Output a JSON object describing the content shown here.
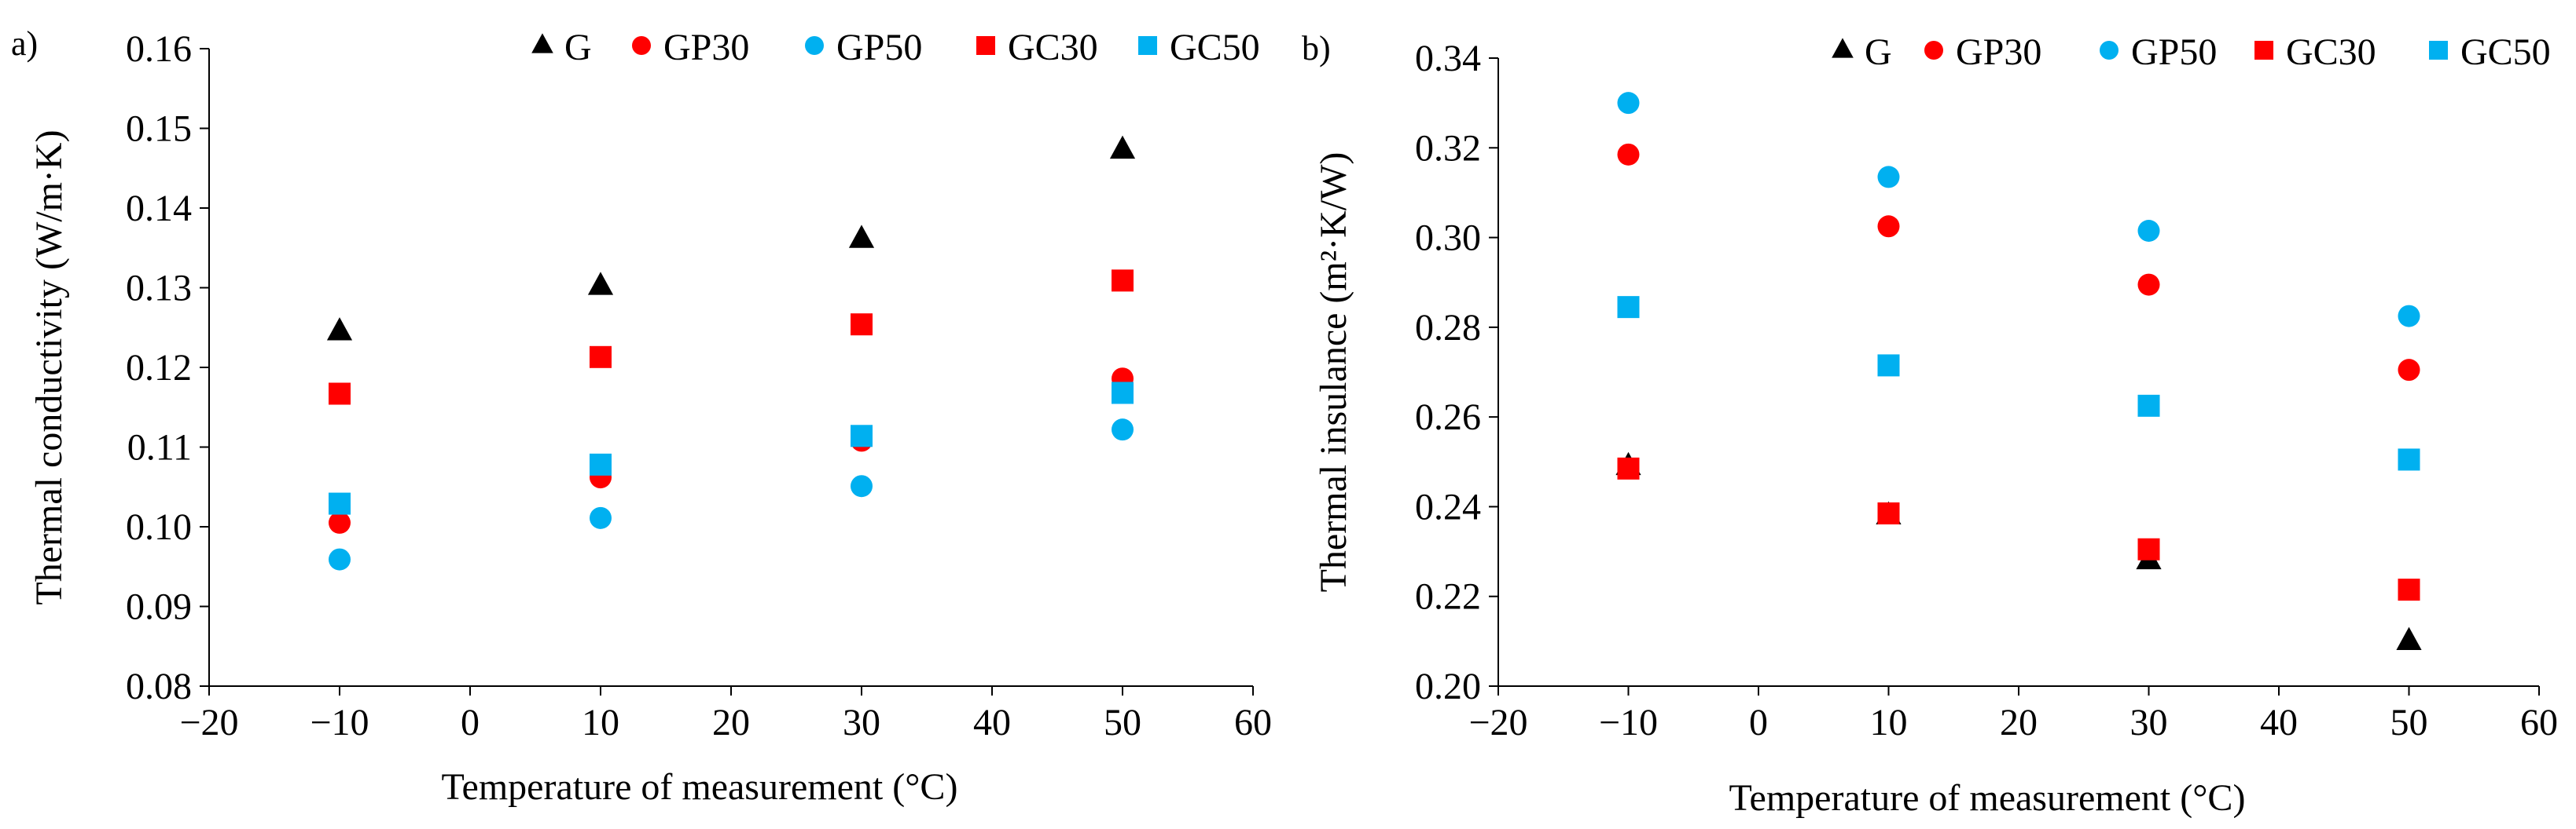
{
  "chart_data": [
    {
      "panel_label": "a)",
      "type": "scatter",
      "xlabel": "Temperature  of measurement  (°C)",
      "ylabel": "Thermal  conductivity  (W/m·K)",
      "xlim": [
        -20,
        60
      ],
      "ylim": [
        0.08,
        0.16
      ],
      "xticks": [
        -20,
        -10,
        0,
        10,
        20,
        30,
        40,
        50,
        60
      ],
      "xtick_labels": [
        "−20",
        "−10",
        "0",
        "10",
        "20",
        "30",
        "40",
        "50",
        "60"
      ],
      "yticks": [
        0.08,
        0.09,
        0.1,
        0.11,
        0.12,
        0.13,
        0.14,
        0.15,
        0.16
      ],
      "ytick_labels": [
        "0.08",
        "0.09",
        "0.10",
        "0.11",
        "0.12",
        "0.13",
        "0.14",
        "0.15",
        "0.16"
      ],
      "grid": false,
      "legend_position": "top",
      "x": [
        -10,
        10,
        30,
        50
      ],
      "series": [
        {
          "name": "G",
          "marker": "triangle",
          "color": "#000000",
          "values": [
            0.1245,
            0.1302,
            0.1361,
            0.1473
          ]
        },
        {
          "name": "GP30",
          "marker": "circle",
          "color": "#ff0000",
          "values": [
            0.1005,
            0.1062,
            0.1108,
            0.1186
          ]
        },
        {
          "name": "GP50",
          "marker": "circle",
          "color": "#00b0f0",
          "values": [
            0.0959,
            0.1011,
            0.1051,
            0.1122
          ]
        },
        {
          "name": "GC30",
          "marker": "square",
          "color": "#ff0000",
          "values": [
            0.1167,
            0.1213,
            0.1254,
            0.1309
          ]
        },
        {
          "name": "GC50",
          "marker": "square",
          "color": "#00b0f0",
          "values": [
            0.1029,
            0.1078,
            0.1114,
            0.1168
          ]
        }
      ]
    },
    {
      "panel_label": "b)",
      "type": "scatter",
      "xlabel": "Temperature  of measurement  (°C)",
      "ylabel": "Thermal  insulance (m²·K/W)",
      "xlim": [
        -20,
        60
      ],
      "ylim": [
        0.2,
        0.34
      ],
      "xticks": [
        -20,
        -10,
        0,
        10,
        20,
        30,
        40,
        50,
        60
      ],
      "xtick_labels": [
        "−20",
        "−10",
        "0",
        "10",
        "20",
        "30",
        "40",
        "50",
        "60"
      ],
      "yticks": [
        0.2,
        0.22,
        0.24,
        0.26,
        0.28,
        0.3,
        0.32,
        0.34
      ],
      "ytick_labels": [
        "0.20",
        "0.22",
        "0.24",
        "0.26",
        "0.28",
        "0.30",
        "0.32",
        "0.34"
      ],
      "grid": false,
      "legend_position": "top",
      "x": [
        -10,
        10,
        30,
        50
      ],
      "series": [
        {
          "name": "G",
          "marker": "triangle",
          "color": "#000000",
          "values": [
            0.249,
            0.238,
            0.228,
            0.21
          ]
        },
        {
          "name": "GP30",
          "marker": "circle",
          "color": "#ff0000",
          "values": [
            0.3185,
            0.3025,
            0.2895,
            0.2705
          ]
        },
        {
          "name": "GP50",
          "marker": "circle",
          "color": "#00b0f0",
          "values": [
            0.33,
            0.3135,
            0.3015,
            0.2825
          ]
        },
        {
          "name": "GC30",
          "marker": "square",
          "color": "#ff0000",
          "values": [
            0.2485,
            0.2385,
            0.2305,
            0.2215
          ]
        },
        {
          "name": "GC50",
          "marker": "square",
          "color": "#00b0f0",
          "values": [
            0.2845,
            0.2715,
            0.2625,
            0.2505
          ]
        }
      ]
    }
  ]
}
